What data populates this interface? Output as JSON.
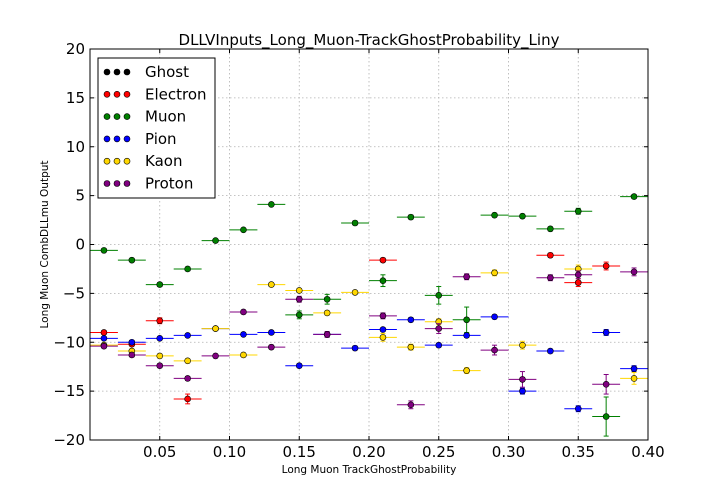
{
  "chart_data": {
    "type": "scatter",
    "title": "DLLVInputs_Long_Muon-TrackGhostProbability_Liny",
    "xlabel": "Long Muon TrackGhostProbability",
    "ylabel": "Long Muon CombDLLmu Output",
    "xlim": [
      0.0,
      0.4
    ],
    "ylim": [
      -20,
      20
    ],
    "x_ticks": [
      0.05,
      0.1,
      0.15,
      0.2,
      0.25,
      0.3,
      0.35,
      0.4
    ],
    "x_tick_labels": [
      "0.05",
      "0.10",
      "0.15",
      "0.20",
      "0.25",
      "0.30",
      "0.35",
      "0.40"
    ],
    "y_ticks": [
      -20,
      -15,
      -10,
      -5,
      0,
      5,
      10,
      15,
      20
    ],
    "y_tick_labels": [
      "−20",
      "−15",
      "−10",
      "−5",
      "0",
      "5",
      "10",
      "15",
      "20"
    ],
    "grid": true,
    "legend_position": "top-left",
    "x_bin_half_width": 0.01,
    "series": [
      {
        "name": "Ghost",
        "color": "#000000",
        "x": [],
        "y": [],
        "yerr": []
      },
      {
        "name": "Electron",
        "color": "#ff0000",
        "x": [
          0.01,
          0.03,
          0.05,
          0.07,
          0.21,
          0.33,
          0.35,
          0.37
        ],
        "y": [
          -9.0,
          -10.2,
          -7.8,
          -15.8,
          -1.6,
          -1.1,
          -3.9,
          -2.2
        ],
        "yerr": [
          0.2,
          0.2,
          0.3,
          0.5,
          0.2,
          0.2,
          0.4,
          0.4
        ]
      },
      {
        "name": "Muon",
        "color": "#008000",
        "x": [
          0.01,
          0.03,
          0.05,
          0.07,
          0.09,
          0.11,
          0.13,
          0.15,
          0.17,
          0.19,
          0.21,
          0.23,
          0.25,
          0.27,
          0.29,
          0.31,
          0.33,
          0.35,
          0.37,
          0.39
        ],
        "y": [
          -0.6,
          -1.6,
          -4.1,
          -2.5,
          0.4,
          1.5,
          4.1,
          -7.2,
          -5.6,
          2.2,
          -3.7,
          2.8,
          -5.2,
          -7.7,
          3.0,
          2.9,
          1.6,
          3.4,
          -17.6,
          4.9
        ],
        "yerr": [
          0.1,
          0.1,
          0.2,
          0.2,
          0.1,
          0.1,
          0.1,
          0.4,
          0.5,
          0.2,
          0.6,
          0.2,
          0.9,
          1.3,
          0.2,
          0.2,
          0.2,
          0.3,
          2.0,
          0.2
        ]
      },
      {
        "name": "Pion",
        "color": "#0000ff",
        "x": [
          0.01,
          0.03,
          0.05,
          0.07,
          0.09,
          0.11,
          0.13,
          0.15,
          0.17,
          0.19,
          0.21,
          0.23,
          0.25,
          0.27,
          0.29,
          0.31,
          0.33,
          0.35,
          0.37,
          0.39
        ],
        "y": [
          -9.6,
          -10.0,
          -9.6,
          -9.3,
          -8.6,
          -9.2,
          -9.0,
          -12.4,
          -9.2,
          -10.6,
          -8.7,
          -7.7,
          -10.3,
          -9.3,
          -7.4,
          -15.0,
          -10.9,
          -16.8,
          -9.0,
          -12.7
        ],
        "yerr": [
          0.1,
          0.1,
          0.1,
          0.1,
          0.1,
          0.1,
          0.1,
          0.2,
          0.2,
          0.2,
          0.2,
          0.2,
          0.2,
          0.2,
          0.2,
          0.3,
          0.2,
          0.3,
          0.3,
          0.3
        ]
      },
      {
        "name": "Kaon",
        "color": "#ffd700",
        "x": [
          0.01,
          0.03,
          0.05,
          0.07,
          0.09,
          0.11,
          0.13,
          0.15,
          0.17,
          0.19,
          0.21,
          0.23,
          0.25,
          0.27,
          0.29,
          0.31,
          0.35,
          0.39
        ],
        "y": [
          -10.3,
          -10.9,
          -11.4,
          -11.9,
          -8.6,
          -11.3,
          -4.1,
          -4.7,
          -7.0,
          -4.9,
          -9.5,
          -10.5,
          -7.9,
          -12.9,
          -2.9,
          -10.3,
          -2.5,
          -13.7
        ],
        "yerr": [
          0.2,
          0.2,
          0.2,
          0.2,
          0.2,
          0.2,
          0.2,
          0.2,
          0.2,
          0.2,
          0.4,
          0.3,
          0.3,
          0.3,
          0.3,
          0.4,
          0.4,
          0.6
        ]
      },
      {
        "name": "Proton",
        "color": "#800080",
        "x": [
          0.01,
          0.03,
          0.05,
          0.07,
          0.09,
          0.11,
          0.13,
          0.15,
          0.17,
          0.21,
          0.23,
          0.25,
          0.27,
          0.29,
          0.31,
          0.33,
          0.35,
          0.37,
          0.39
        ],
        "y": [
          -10.4,
          -11.3,
          -12.4,
          -13.7,
          -11.4,
          -6.9,
          -10.5,
          -5.6,
          -9.2,
          -7.3,
          -16.4,
          -8.6,
          -3.3,
          -10.8,
          -13.8,
          -3.4,
          -3.1,
          -14.3,
          -2.8
        ],
        "yerr": [
          0.2,
          0.2,
          0.2,
          0.2,
          0.2,
          0.2,
          0.2,
          0.3,
          0.3,
          0.3,
          0.4,
          0.5,
          0.3,
          0.5,
          0.8,
          0.3,
          0.4,
          1.0,
          0.4
        ]
      }
    ]
  }
}
